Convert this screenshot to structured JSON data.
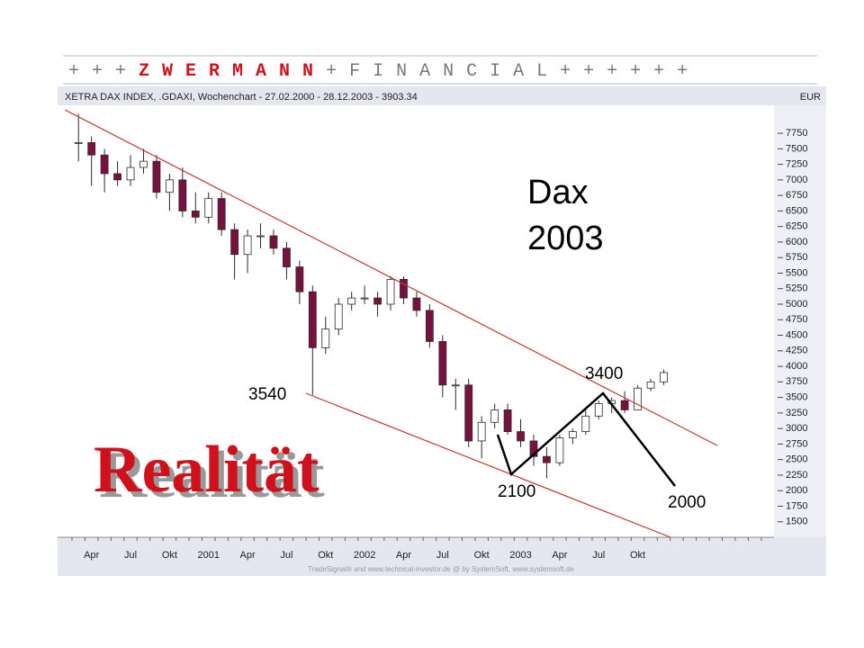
{
  "header": {
    "left": "+ + +",
    "brand": "Z W E R M A N N",
    "right": "+ F I N A N C I A L + + + + + +"
  },
  "chart_data": {
    "type": "candlestick",
    "title": "XETRA DAX INDEX, .GDAXI, Wochenchart - 27.02.2000 - 28.12.2003 - 3903.34",
    "unit_label": "EUR",
    "footer": "TradeSignal® and www.technical-investor.de @ by SystemSoft, www.systemsoft.de",
    "categories": [
      null,
      "Apr",
      null,
      null,
      "Jul",
      null,
      null,
      "Okt",
      null,
      null,
      "2001",
      null,
      null,
      "Apr",
      null,
      null,
      "Jul",
      null,
      null,
      "Okt",
      null,
      null,
      "2002",
      null,
      null,
      "Apr",
      null,
      null,
      "Jul",
      null,
      null,
      "Okt",
      null,
      null,
      "2003",
      null,
      null,
      "Apr",
      null,
      null,
      "Jul",
      null,
      null,
      "Okt",
      null,
      null,
      null,
      null,
      null,
      null,
      null,
      null,
      null,
      null
    ],
    "open": [
      7600,
      7600,
      7400,
      7100,
      7000,
      7200,
      7300,
      6800,
      7000,
      6500,
      6400,
      6700,
      6200,
      5800,
      6100,
      6100,
      5900,
      5600,
      5200,
      4300,
      4600,
      5000,
      5100,
      5100,
      5000,
      5400,
      5100,
      4900,
      4400,
      3700,
      3700,
      2800,
      3100,
      3300,
      2950,
      2800,
      2550,
      2450,
      2850,
      2950,
      3200,
      3400,
      3450,
      3300,
      3650,
      3750,
      null,
      null,
      null,
      null,
      null,
      null,
      null,
      null
    ],
    "high": [
      8064,
      7700,
      7500,
      7300,
      7400,
      7500,
      7400,
      7100,
      7200,
      6800,
      6800,
      6800,
      6300,
      6200,
      6300,
      6200,
      6000,
      5700,
      5300,
      4800,
      5100,
      5200,
      5300,
      5200,
      5450,
      5450,
      5200,
      5000,
      4500,
      3800,
      3800,
      3200,
      3400,
      3400,
      3150,
      2900,
      2700,
      2900,
      3000,
      3300,
      3450,
      3500,
      3600,
      3700,
      3800,
      3950,
      null,
      null,
      null,
      null,
      null,
      null,
      null,
      null
    ],
    "low": [
      7300,
      6900,
      6800,
      6900,
      6900,
      7100,
      6700,
      6500,
      6400,
      6300,
      6300,
      6100,
      5400,
      5500,
      5900,
      5800,
      5400,
      5000,
      3540,
      4200,
      4500,
      4900,
      5000,
      4800,
      4900,
      5000,
      4800,
      4300,
      3500,
      3300,
      2700,
      2520,
      3000,
      2900,
      2700,
      2400,
      2200,
      2400,
      2750,
      2900,
      3150,
      3250,
      3250,
      3300,
      3600,
      3700,
      null,
      null,
      null,
      null,
      null,
      null,
      null,
      null
    ],
    "close": [
      7600,
      7400,
      7100,
      7000,
      7200,
      7300,
      6800,
      7000,
      6500,
      6400,
      6700,
      6200,
      5800,
      6100,
      6100,
      5900,
      5600,
      5200,
      4300,
      4600,
      5000,
      5100,
      5100,
      5000,
      5400,
      5100,
      4900,
      4400,
      3700,
      3700,
      2800,
      3100,
      3300,
      2950,
      2800,
      2550,
      2450,
      2850,
      2950,
      3200,
      3400,
      3450,
      3300,
      3650,
      3750,
      3900,
      null,
      null,
      null,
      null,
      null,
      null,
      null,
      null
    ],
    "up_color": "#ffffff",
    "down_color": "#7a1040",
    "wick_color": "#2a2a2a",
    "ylim": [
      1250,
      8200
    ],
    "yticks": [
      1500,
      1750,
      2000,
      2250,
      2500,
      2750,
      3000,
      3250,
      3500,
      3750,
      4000,
      4250,
      4500,
      4750,
      5000,
      5250,
      5500,
      5750,
      6000,
      6250,
      6500,
      6750,
      7000,
      7250,
      7500,
      7750
    ],
    "annotations": [
      "3540",
      "3400",
      "2100",
      "2000"
    ],
    "note_lines": [
      "Dax",
      "2003"
    ],
    "headline": "Realität"
  }
}
